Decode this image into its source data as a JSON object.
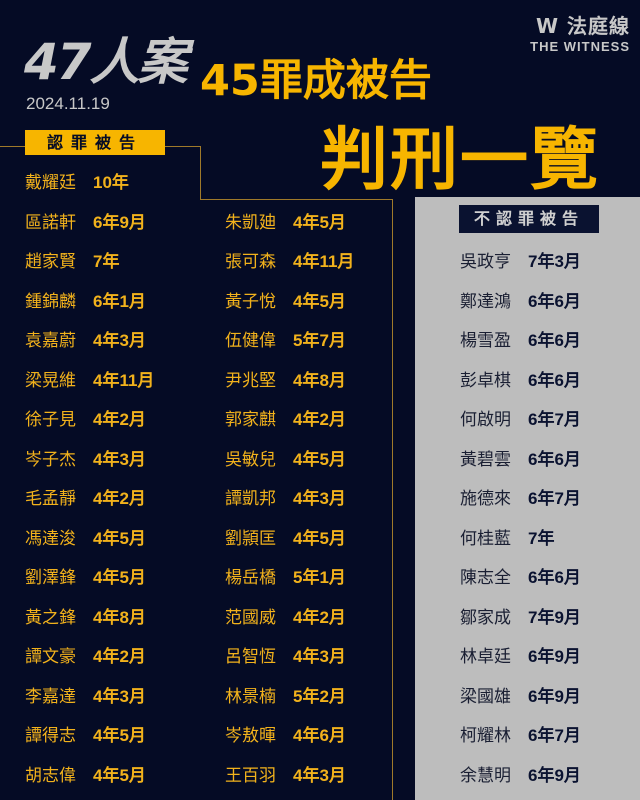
{
  "header": {
    "case_title": "47人案",
    "date": "2024.11.19",
    "subtitle": "45罪成被告",
    "title": "判刑一覽",
    "logo_cn": "W 法庭線",
    "logo_en": "THE WITNESS"
  },
  "colors": {
    "background": "#050b25",
    "accent": "#f7b500",
    "panel": "#bdbdbd"
  },
  "guilty_plea": {
    "label": "認罪被告",
    "left": [
      {
        "name": "戴耀廷",
        "sentence": "10年"
      },
      {
        "name": "區諾軒",
        "sentence": "6年9月"
      },
      {
        "name": "趙家賢",
        "sentence": "7年"
      },
      {
        "name": "鍾錦麟",
        "sentence": "6年1月"
      },
      {
        "name": "袁嘉蔚",
        "sentence": "4年3月"
      },
      {
        "name": "梁晃維",
        "sentence": "4年11月"
      },
      {
        "name": "徐子見",
        "sentence": "4年2月"
      },
      {
        "name": "岑子杰",
        "sentence": "4年3月"
      },
      {
        "name": "毛孟靜",
        "sentence": "4年2月"
      },
      {
        "name": "馮達浚",
        "sentence": "4年5月"
      },
      {
        "name": "劉澤鋒",
        "sentence": "4年5月"
      },
      {
        "name": "黃之鋒",
        "sentence": "4年8月"
      },
      {
        "name": "譚文豪",
        "sentence": "4年2月"
      },
      {
        "name": "李嘉達",
        "sentence": "4年3月"
      },
      {
        "name": "譚得志",
        "sentence": "4年5月"
      },
      {
        "name": "胡志偉",
        "sentence": "4年5月"
      }
    ],
    "right": [
      {
        "name": "朱凱廸",
        "sentence": "4年5月"
      },
      {
        "name": "張可森",
        "sentence": "4年11月"
      },
      {
        "name": "黃子悅",
        "sentence": "4年5月"
      },
      {
        "name": "伍健偉",
        "sentence": "5年7月"
      },
      {
        "name": "尹兆堅",
        "sentence": "4年8月"
      },
      {
        "name": "郭家麒",
        "sentence": "4年2月"
      },
      {
        "name": "吳敏兒",
        "sentence": "4年5月"
      },
      {
        "name": "譚凱邦",
        "sentence": "4年3月"
      },
      {
        "name": "劉頴匡",
        "sentence": "4年5月"
      },
      {
        "name": "楊岳橋",
        "sentence": "5年1月"
      },
      {
        "name": "范國威",
        "sentence": "4年2月"
      },
      {
        "name": "呂智恆",
        "sentence": "4年3月"
      },
      {
        "name": "林景楠",
        "sentence": "5年2月"
      },
      {
        "name": "岑敖暉",
        "sentence": "4年6月"
      },
      {
        "name": "王百羽",
        "sentence": "4年3月"
      }
    ]
  },
  "not_guilty_plea": {
    "label": "不認罪被告",
    "items": [
      {
        "name": "吳政亨",
        "sentence": "7年3月"
      },
      {
        "name": "鄭達鴻",
        "sentence": "6年6月"
      },
      {
        "name": "楊雪盈",
        "sentence": "6年6月"
      },
      {
        "name": "彭卓棋",
        "sentence": "6年6月"
      },
      {
        "name": "何啟明",
        "sentence": "6年7月"
      },
      {
        "name": "黃碧雲",
        "sentence": "6年6月"
      },
      {
        "name": "施德來",
        "sentence": "6年7月"
      },
      {
        "name": "何桂藍",
        "sentence": "7年"
      },
      {
        "name": "陳志全",
        "sentence": "6年6月"
      },
      {
        "name": "鄒家成",
        "sentence": "7年9月"
      },
      {
        "name": "林卓廷",
        "sentence": "6年9月"
      },
      {
        "name": "梁國雄",
        "sentence": "6年9月"
      },
      {
        "name": "柯耀林",
        "sentence": "6年7月"
      },
      {
        "name": "余慧明",
        "sentence": "6年9月"
      }
    ]
  }
}
